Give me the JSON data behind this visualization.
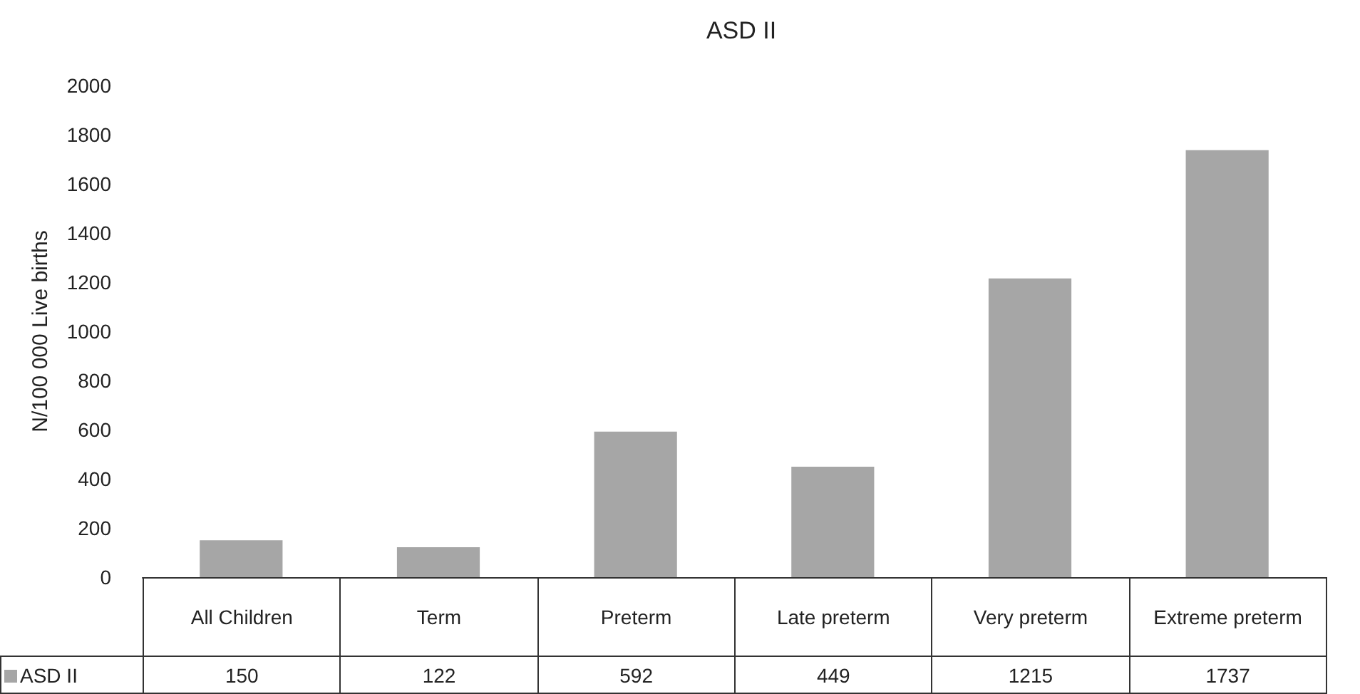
{
  "chart_data": {
    "type": "bar",
    "title": "ASD II",
    "ylabel": "N/100 000 Live births",
    "categories": [
      "All Children",
      "Term",
      "Preterm",
      "Late preterm",
      "Very preterm",
      "Extreme preterm"
    ],
    "series": [
      {
        "name": "ASD II",
        "color": "#a6a6a6",
        "values": [
          150,
          122,
          592,
          449,
          1215,
          1737
        ]
      }
    ],
    "ylim": [
      0,
      2000
    ],
    "yticks": [
      0,
      200,
      400,
      600,
      800,
      1000,
      1200,
      1400,
      1600,
      1800,
      2000
    ],
    "grid": false,
    "legend": "bottom left",
    "data_labels": true
  }
}
